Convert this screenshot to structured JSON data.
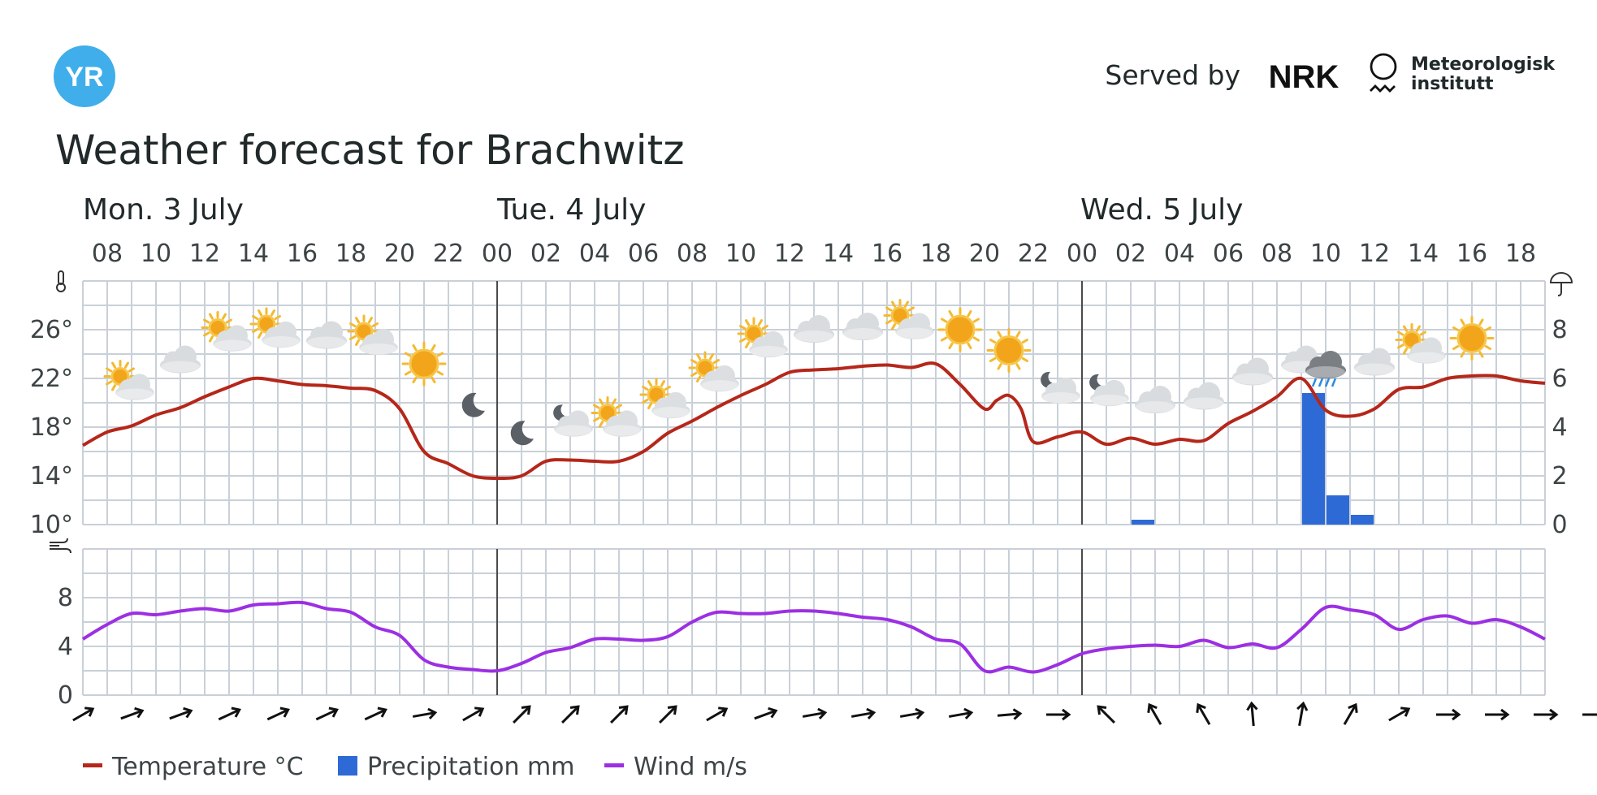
{
  "header": {
    "logo_text": "YR",
    "served_by": "Served by",
    "nrk_logo": "NRK",
    "met_lines": [
      "Meteorologisk",
      "institutt"
    ]
  },
  "title": "Weather forecast for Brachwitz",
  "colors": {
    "temperature": "#b5271a",
    "precipitation": "#2d6ad6",
    "wind": "#9c2fe3",
    "grid": "#c9d0d8",
    "day_divider": "#4b4b4b",
    "yr_logo": "#3faeea"
  },
  "icons": {
    "temperature_axis": "thermometer-icon",
    "precipitation_axis": "umbrella-icon",
    "wind_axis": "wind-icon"
  },
  "chart_data": {
    "type": "line",
    "days": [
      {
        "label": "Mon. 3 July",
        "hour": 8
      },
      {
        "label": "Tue. 4 July",
        "hour": 24
      },
      {
        "label": "Wed. 5 July",
        "hour": 48
      }
    ],
    "x_start_hour": 7,
    "x_end_hour": 67,
    "hour_tick_labels": [
      "08",
      "10",
      "12",
      "14",
      "16",
      "18",
      "20",
      "22",
      "00",
      "02",
      "04",
      "06",
      "08",
      "10",
      "12",
      "14",
      "16",
      "18",
      "20",
      "22",
      "00",
      "02",
      "04",
      "06",
      "08",
      "10",
      "12",
      "14",
      "16",
      "18"
    ],
    "temperature": {
      "name": "Temperature °C",
      "axis_ticks": [
        "10°",
        "14°",
        "18°",
        "22°",
        "26°"
      ],
      "ylim": [
        10,
        30
      ],
      "x": [
        7,
        8,
        9,
        10,
        11,
        12,
        13,
        14,
        15,
        16,
        17,
        18,
        19,
        20,
        21,
        22,
        23,
        24,
        25,
        26,
        27,
        28,
        29,
        30,
        31,
        32,
        33,
        34,
        35,
        36,
        37,
        38,
        39,
        40,
        41,
        42,
        43,
        44,
        44.5,
        45,
        45.5,
        46,
        47,
        48,
        49,
        50,
        51,
        52,
        53,
        54,
        55,
        56,
        57,
        58,
        59,
        60,
        61,
        62,
        63,
        64,
        65,
        66,
        67
      ],
      "values": [
        16.5,
        17.6,
        18.1,
        19.0,
        19.6,
        20.5,
        21.3,
        22.0,
        21.8,
        21.5,
        21.4,
        21.2,
        21.0,
        19.5,
        16.0,
        15.0,
        14.0,
        13.8,
        14.0,
        15.2,
        15.3,
        15.2,
        15.2,
        16.0,
        17.5,
        18.5,
        19.6,
        20.6,
        21.5,
        22.5,
        22.7,
        22.8,
        23.0,
        23.1,
        22.9,
        23.2,
        21.5,
        19.5,
        20.2,
        20.6,
        19.5,
        16.8,
        17.2,
        17.6,
        16.6,
        17.1,
        16.6,
        17.0,
        16.9,
        18.3,
        19.3,
        20.5,
        22.0,
        19.4,
        18.9,
        19.5,
        21.1,
        21.3,
        22.0,
        22.2,
        22.2,
        21.8,
        21.6
      ]
    },
    "precipitation": {
      "name": "Precipitation mm",
      "axis_ticks": [
        "0",
        "2",
        "4",
        "6",
        "8"
      ],
      "ylim": [
        0,
        10
      ],
      "bars": [
        {
          "hour": 50,
          "value": 0.2
        },
        {
          "hour": 57,
          "value": 5.4
        },
        {
          "hour": 58,
          "value": 1.2
        },
        {
          "hour": 59,
          "value": 0.4
        }
      ]
    },
    "wind": {
      "name": "Wind m/s",
      "axis_ticks": [
        "0",
        "4",
        "8"
      ],
      "ylim": [
        0,
        12
      ],
      "x": [
        7,
        8,
        9,
        10,
        11,
        12,
        13,
        14,
        15,
        16,
        17,
        18,
        19,
        20,
        21,
        22,
        23,
        24,
        25,
        26,
        27,
        28,
        29,
        30,
        31,
        32,
        33,
        34,
        35,
        36,
        37,
        38,
        39,
        40,
        41,
        42,
        43,
        44,
        45,
        46,
        47,
        48,
        49,
        50,
        51,
        52,
        53,
        54,
        55,
        56,
        57,
        58,
        59,
        60,
        61,
        62,
        63,
        64,
        65,
        66,
        67
      ],
      "values": [
        4.6,
        5.8,
        6.7,
        6.6,
        6.9,
        7.1,
        6.9,
        7.4,
        7.5,
        7.6,
        7.1,
        6.8,
        5.6,
        4.9,
        2.9,
        2.3,
        2.1,
        2.0,
        2.6,
        3.5,
        3.9,
        4.6,
        4.6,
        4.5,
        4.8,
        6.0,
        6.8,
        6.7,
        6.7,
        6.9,
        6.9,
        6.7,
        6.4,
        6.2,
        5.6,
        4.6,
        4.2,
        2.0,
        2.3,
        1.9,
        2.5,
        3.4,
        3.8,
        4.0,
        4.1,
        4.0,
        4.5,
        3.9,
        4.2,
        3.9,
        5.4,
        7.2,
        7.0,
        6.6,
        5.4,
        6.2,
        6.5,
        5.9,
        6.2,
        5.6,
        4.6
      ]
    },
    "wind_arrows_deg": [
      60,
      70,
      70,
      65,
      65,
      65,
      65,
      80,
      60,
      45,
      45,
      45,
      45,
      60,
      70,
      80,
      80,
      80,
      80,
      85,
      90,
      -45,
      -30,
      -30,
      -5,
      10,
      30,
      60,
      90,
      90,
      90,
      90
    ],
    "weather_symbols": [
      {
        "hour": 9,
        "temp": 21.5,
        "icon": "partly-cloudy-icon"
      },
      {
        "hour": 11,
        "temp": 23.5,
        "icon": "cloudy-icon"
      },
      {
        "hour": 13,
        "temp": 25.5,
        "icon": "partly-cloudy-icon"
      },
      {
        "hour": 15,
        "temp": 25.8,
        "icon": "partly-cloudy-icon"
      },
      {
        "hour": 17,
        "temp": 25.5,
        "icon": "cloudy-icon"
      },
      {
        "hour": 19,
        "temp": 25.2,
        "icon": "partly-cloudy-icon"
      },
      {
        "hour": 21,
        "temp": 23.2,
        "icon": "sun-icon"
      },
      {
        "hour": 23,
        "temp": 19.8,
        "icon": "moon-icon"
      },
      {
        "hour": 25,
        "temp": 17.5,
        "icon": "moon-icon"
      },
      {
        "hour": 27,
        "temp": 18.5,
        "icon": "night-cloudy-icon"
      },
      {
        "hour": 29,
        "temp": 18.5,
        "icon": "partly-cloudy-icon"
      },
      {
        "hour": 31,
        "temp": 20.0,
        "icon": "partly-cloudy-icon"
      },
      {
        "hour": 33,
        "temp": 22.2,
        "icon": "partly-cloudy-icon"
      },
      {
        "hour": 35,
        "temp": 25.0,
        "icon": "partly-cloudy-icon"
      },
      {
        "hour": 37,
        "temp": 26.0,
        "icon": "cloudy-icon"
      },
      {
        "hour": 39,
        "temp": 26.2,
        "icon": "cloudy-icon"
      },
      {
        "hour": 41,
        "temp": 26.5,
        "icon": "partly-cloudy-icon"
      },
      {
        "hour": 43,
        "temp": 26.0,
        "icon": "sun-icon"
      },
      {
        "hour": 45,
        "temp": 24.3,
        "icon": "sun-icon"
      },
      {
        "hour": 47,
        "temp": 21.2,
        "icon": "night-cloudy-icon"
      },
      {
        "hour": 49,
        "temp": 21.0,
        "icon": "night-cloudy-icon"
      },
      {
        "hour": 51,
        "temp": 20.2,
        "icon": "cloudy-icon"
      },
      {
        "hour": 53,
        "temp": 20.5,
        "icon": "cloudy-icon"
      },
      {
        "hour": 55,
        "temp": 22.5,
        "icon": "cloudy-icon"
      },
      {
        "hour": 57,
        "temp": 23.5,
        "icon": "cloudy-icon"
      },
      {
        "hour": 58,
        "temp": 22.8,
        "icon": "rain-icon"
      },
      {
        "hour": 60,
        "temp": 23.3,
        "icon": "cloudy-icon"
      },
      {
        "hour": 62,
        "temp": 24.5,
        "icon": "partly-cloudy-icon"
      },
      {
        "hour": 64,
        "temp": 25.3,
        "icon": "sun-icon"
      }
    ],
    "legend": [
      "Temperature °C",
      "Precipitation mm",
      "Wind m/s"
    ]
  }
}
